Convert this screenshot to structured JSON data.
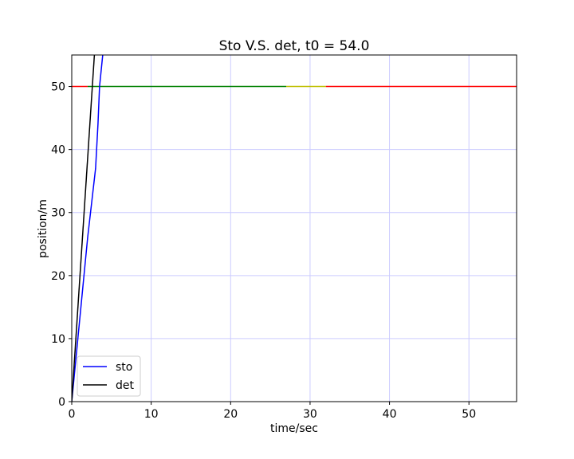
{
  "chart_data": {
    "type": "line",
    "title": "Sto V.S. det, t0 = 54.0",
    "xlabel": "time/sec",
    "ylabel": "position/m",
    "xlim": [
      0,
      56
    ],
    "ylim": [
      0,
      55
    ],
    "x_ticks": [
      0,
      10,
      20,
      30,
      40,
      50
    ],
    "y_ticks": [
      0,
      10,
      20,
      30,
      40,
      50
    ],
    "grid": true,
    "grid_color": "#ccccff",
    "legend_position": "lower-left",
    "series": [
      {
        "name": "sto",
        "color": "#0000ff",
        "x": [
          0,
          1.0,
          2.0,
          3.0,
          3.3,
          3.5,
          3.9
        ],
        "y": [
          0,
          13,
          26,
          37,
          44,
          50,
          55
        ]
      },
      {
        "name": "det",
        "color": "#000000",
        "x": [
          0,
          2.85
        ],
        "y": [
          0,
          55
        ]
      }
    ],
    "signal_line": {
      "y": 50,
      "segments": [
        {
          "x": [
            0,
            2
          ],
          "color": "#ff0000"
        },
        {
          "x": [
            2,
            27
          ],
          "color": "#008000"
        },
        {
          "x": [
            27,
            32
          ],
          "color": "#bfbf00"
        },
        {
          "x": [
            32,
            56
          ],
          "color": "#ff0000"
        }
      ]
    }
  }
}
